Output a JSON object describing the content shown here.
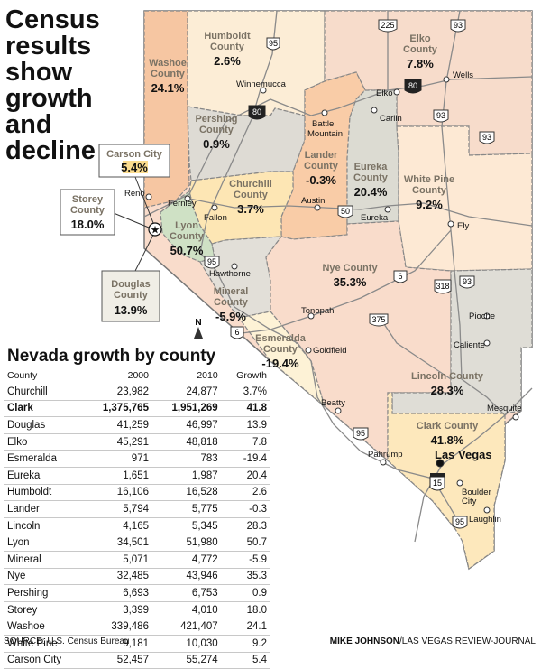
{
  "headline": [
    "Census",
    "results",
    "show",
    "growth",
    "and",
    "decline"
  ],
  "table": {
    "title": "Nevada growth by county",
    "headers": [
      "County",
      "2000",
      "2010",
      "Growth"
    ],
    "rows": [
      {
        "county": "Churchill",
        "y2000": "23,982",
        "y2010": "24,877",
        "growth": "3.7%",
        "bold": false
      },
      {
        "county": "Clark",
        "y2000": "1,375,765",
        "y2010": "1,951,269",
        "growth": "41.8",
        "bold": true
      },
      {
        "county": "Douglas",
        "y2000": "41,259",
        "y2010": "46,997",
        "growth": "13.9",
        "bold": false
      },
      {
        "county": "Elko",
        "y2000": "45,291",
        "y2010": "48,818",
        "growth": "7.8",
        "bold": false
      },
      {
        "county": "Esmeralda",
        "y2000": "971",
        "y2010": "783",
        "growth": "-19.4",
        "bold": false
      },
      {
        "county": "Eureka",
        "y2000": "1,651",
        "y2010": "1,987",
        "growth": "20.4",
        "bold": false
      },
      {
        "county": "Humboldt",
        "y2000": "16,106",
        "y2010": "16,528",
        "growth": "2.6",
        "bold": false
      },
      {
        "county": "Lander",
        "y2000": "5,794",
        "y2010": "5,775",
        "growth": "-0.3",
        "bold": false
      },
      {
        "county": "Lincoln",
        "y2000": "4,165",
        "y2010": "5,345",
        "growth": "28.3",
        "bold": false
      },
      {
        "county": "Lyon",
        "y2000": "34,501",
        "y2010": "51,980",
        "growth": "50.7",
        "bold": false
      },
      {
        "county": "Mineral",
        "y2000": "5,071",
        "y2010": "4,772",
        "growth": "-5.9",
        "bold": false
      },
      {
        "county": "Nye",
        "y2000": "32,485",
        "y2010": "43,946",
        "growth": "35.3",
        "bold": false
      },
      {
        "county": "Pershing",
        "y2000": "6,693",
        "y2010": "6,753",
        "growth": "0.9",
        "bold": false
      },
      {
        "county": "Storey",
        "y2000": "3,399",
        "y2010": "4,010",
        "growth": "18.0",
        "bold": false
      },
      {
        "county": "Washoe",
        "y2000": "339,486",
        "y2010": "421,407",
        "growth": "24.1",
        "bold": false
      },
      {
        "county": "White Pine",
        "y2000": "9,181",
        "y2010": "10,030",
        "growth": "9.2",
        "bold": false
      },
      {
        "county": "Carson City",
        "y2000": "52,457",
        "y2010": "55,274",
        "growth": "5.4",
        "bold": false
      }
    ]
  },
  "source": "SOURCE: U.S. Census Bureau",
  "credit": {
    "author": "MIKE JOHNSON",
    "outlet": "/LAS VEGAS REVIEW-JOURNAL"
  },
  "map": {
    "counties": {
      "washoe": {
        "name": [
          "Washoe",
          "County"
        ],
        "value": "24.1%"
      },
      "humboldt": {
        "name": [
          "Humboldt",
          "County"
        ],
        "value": "2.6%"
      },
      "elko": {
        "name": [
          "Elko",
          "County"
        ],
        "value": "7.8%"
      },
      "pershing": {
        "name": [
          "Pershing",
          "County"
        ],
        "value": "0.9%"
      },
      "lander": {
        "name": [
          "Lander",
          "County"
        ],
        "value": "-0.3%"
      },
      "eureka": {
        "name": [
          "Eureka",
          "County"
        ],
        "value": "20.4%"
      },
      "white_pine": {
        "name": [
          "White Pine",
          "County"
        ],
        "value": "9.2%"
      },
      "churchill": {
        "name": [
          "Churchill",
          "County"
        ],
        "value": "3.7%"
      },
      "lyon": {
        "name": [
          "Lyon",
          "County"
        ],
        "value": "50.7%"
      },
      "mineral": {
        "name": [
          "Mineral",
          "County"
        ],
        "value": "-5.9%"
      },
      "nye": {
        "name": [
          "Nye County"
        ],
        "value": "35.3%"
      },
      "esmeralda": {
        "name": [
          "Esmeralda",
          "County"
        ],
        "value": "-19.4%"
      },
      "lincoln": {
        "name": [
          "Lincoln County"
        ],
        "value": "28.3%"
      },
      "clark": {
        "name": [
          "Clark County"
        ],
        "value": "41.8%"
      }
    },
    "callouts": {
      "carson": {
        "name": "Carson City",
        "value": "5.4%"
      },
      "storey": {
        "name": [
          "Storey",
          "County"
        ],
        "value": "18.0%"
      },
      "douglas": {
        "name": [
          "Douglas",
          "County"
        ],
        "value": "13.9%"
      }
    },
    "cities": [
      "Winnemucca",
      "Battle",
      "Mountain",
      "Elko",
      "Wells",
      "Carlin",
      "Reno",
      "Fernley",
      "Fallon",
      "Austin",
      "Eureka",
      "Ely",
      "Hawthorne",
      "Tonopah",
      "Goldfield",
      "Pioche",
      "Caliente",
      "Mesquite",
      "Beatty",
      "Pahrump",
      "Las Vegas",
      "Boulder",
      "City",
      "Laughlin"
    ],
    "highways": [
      "95",
      "225",
      "93",
      "80",
      "80",
      "93",
      "93",
      "50",
      "6",
      "95",
      "318",
      "93",
      "6",
      "375",
      "95",
      "15",
      "95"
    ],
    "north": "N",
    "colors": {
      "background": "#ffffff",
      "county_default": "#f5d9c8",
      "washoe": "#f6c6a2",
      "humboldt": "#fcedd6",
      "elko": "#f7dccb",
      "pershing": "#dedbd4",
      "lander": "#f9cca7",
      "eureka": "#dcdbd2",
      "white_pine": "#fde9d4",
      "churchill": "#fde6b4",
      "lyon": "#cfe1c5",
      "mineral": "#e2dfd8",
      "nye": "#f9dccb",
      "esmeralda": "#fdf2d6",
      "lincoln": "#dfddd6",
      "clark": "#fde8bc",
      "border": "#888888",
      "road": "#8a8a8a"
    }
  }
}
